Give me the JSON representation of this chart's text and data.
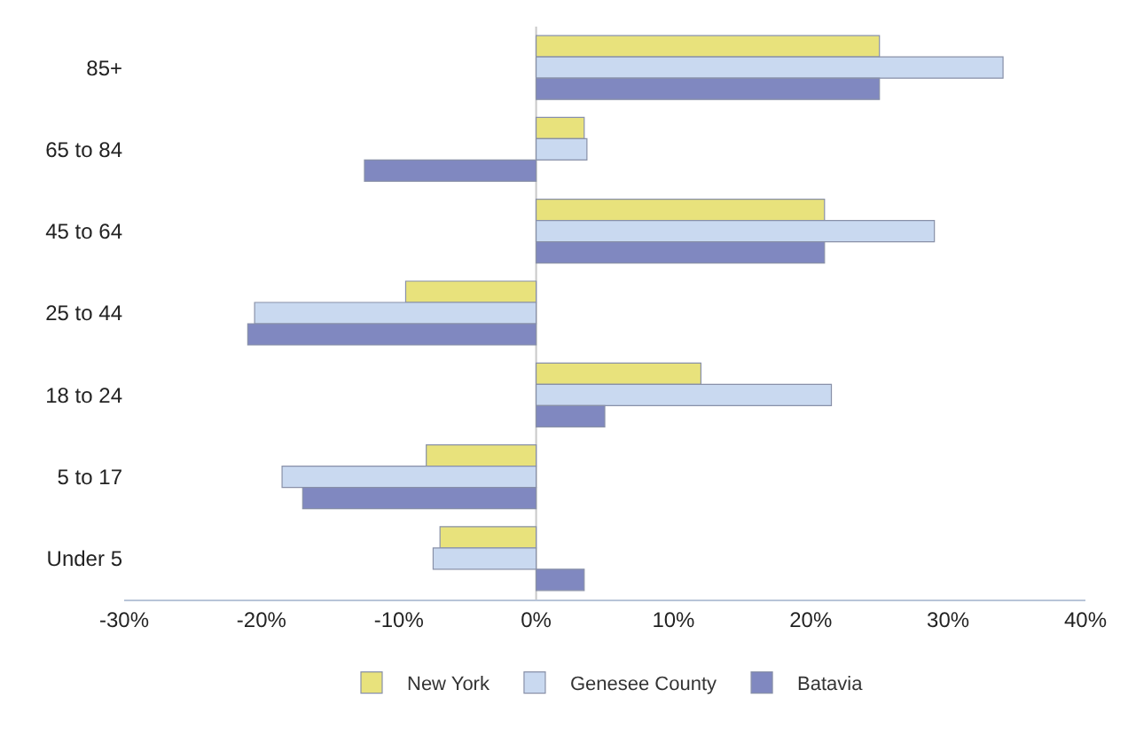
{
  "chart_data": {
    "type": "bar",
    "orientation": "horizontal",
    "categories": [
      "85+",
      "65 to 84",
      "45 to 64",
      "25 to 44",
      "18 to 24",
      "5 to 17",
      "Under 5"
    ],
    "series": [
      {
        "name": "New York",
        "color": "#e8e27c",
        "values": [
          25,
          3.5,
          21,
          -9.5,
          12,
          -8,
          -7
        ]
      },
      {
        "name": "Genesee County",
        "color": "#c9d9f0",
        "values": [
          34,
          3.7,
          29,
          -20.5,
          21.5,
          -18.5,
          -7.5
        ]
      },
      {
        "name": "Batavia",
        "color": "#8088c0",
        "values": [
          25,
          -12.5,
          21,
          -21,
          5,
          -17,
          3.5
        ]
      }
    ],
    "xlim": [
      -30,
      40
    ],
    "xticks": [
      {
        "value": -30,
        "label": "-30%"
      },
      {
        "value": -20,
        "label": "-20%"
      },
      {
        "value": -10,
        "label": "-10%"
      },
      {
        "value": 0,
        "label": "0%"
      },
      {
        "value": 10,
        "label": "10%"
      },
      {
        "value": 20,
        "label": "20%"
      },
      {
        "value": 30,
        "label": "30%"
      },
      {
        "value": 40,
        "label": "40%"
      }
    ],
    "ref_lines": [
      {
        "axis": "x",
        "value": 0,
        "color": "#c8c8c8"
      }
    ],
    "grid": false,
    "legend": "bottom"
  }
}
